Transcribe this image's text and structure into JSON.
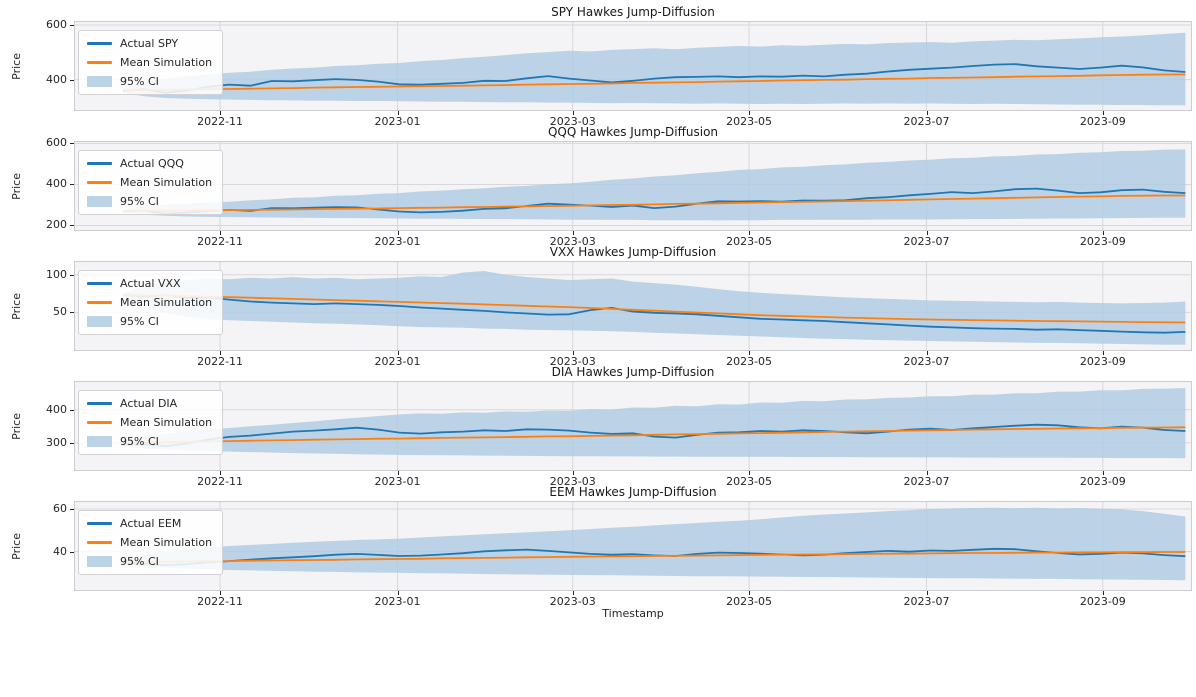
{
  "figure": {
    "xlabel": "Timestamp",
    "x_ticks": [
      "2022-11",
      "2023-01",
      "2023-03",
      "2023-05",
      "2023-07",
      "2023-09"
    ],
    "x_tick_positions": [
      0.13,
      0.289,
      0.446,
      0.604,
      0.763,
      0.921
    ],
    "data_x_range": [
      0.043,
      0.995
    ],
    "legend_mean": "Mean Simulation",
    "legend_ci": "95% CI",
    "colors": {
      "actual_line": "#1f77b4",
      "mean_line": "#ff7f0e",
      "ci_band": "#aecbe3",
      "plot_background": "#f4f4f6",
      "grid": "#d8d8dc",
      "spine": "#cccdd2",
      "text": "#262626"
    }
  },
  "chart_data": [
    {
      "type": "line",
      "ticker": "SPY",
      "title": "SPY Hawkes Jump-Diffusion",
      "ylabel": "Price",
      "legend_actual": "Actual SPY",
      "legend": [
        "Actual SPY",
        "Mean Simulation",
        "95% CI"
      ],
      "y_ticks": [
        400,
        600
      ],
      "ylim": [
        289,
        611
      ],
      "series": {
        "actual": [
          358,
          365,
          352,
          360,
          374,
          382,
          378,
          395,
          394,
          398,
          402,
          399,
          393,
          383,
          382,
          385,
          388,
          396,
          395,
          405,
          413,
          404,
          397,
          390,
          396,
          404,
          409,
          410,
          412,
          409,
          412,
          411,
          415,
          412,
          418,
          422,
          430,
          436,
          440,
          444,
          450,
          455,
          457,
          449,
          444,
          439,
          444,
          451,
          445,
          434,
          428
        ],
        "mean": [
          361,
          362,
          363,
          364,
          365,
          366,
          367,
          368,
          369,
          371,
          372,
          373,
          374,
          375,
          376,
          377,
          378,
          379,
          380,
          382,
          383,
          384,
          385,
          386,
          388,
          389,
          390,
          391,
          393,
          394,
          395,
          397,
          398,
          399,
          400,
          402,
          403,
          404,
          406,
          407,
          408,
          409,
          411,
          412,
          413,
          414,
          416,
          417,
          418,
          419,
          419
        ],
        "upper_95ci": [
          368,
          392,
          404,
          413,
          419,
          425,
          429,
          436,
          441,
          444,
          450,
          453,
          458,
          461,
          468,
          472,
          479,
          484,
          490,
          497,
          501,
          506,
          503,
          509,
          512,
          515,
          511,
          517,
          520,
          523,
          521,
          526,
          524,
          528,
          531,
          529,
          534,
          536,
          538,
          535,
          540,
          543,
          546,
          544,
          548,
          551,
          555,
          558,
          562,
          567,
          572
        ],
        "lower_95ci": [
          352,
          339,
          333,
          330,
          328,
          327,
          326,
          325,
          324,
          323,
          323,
          322,
          322,
          321,
          320,
          319,
          319,
          318,
          317,
          317,
          316,
          316,
          315,
          314,
          315,
          314,
          313,
          312,
          313,
          312,
          311,
          312,
          311,
          312,
          313,
          312,
          313,
          312,
          313,
          312,
          311,
          312,
          311,
          310,
          309,
          308,
          308,
          307,
          307,
          306,
          306
        ]
      }
    },
    {
      "type": "line",
      "ticker": "QQQ",
      "title": "QQQ Hawkes Jump-Diffusion",
      "ylabel": "Price",
      "legend_actual": "Actual QQQ",
      "legend": [
        "Actual QQQ",
        "Mean Simulation",
        "95% CI"
      ],
      "y_ticks": [
        200,
        400,
        600
      ],
      "ylim": [
        178,
        607
      ],
      "series": {
        "actual": [
          268,
          272,
          258,
          263,
          270,
          276,
          271,
          285,
          284,
          287,
          289,
          288,
          278,
          268,
          264,
          266,
          272,
          281,
          284,
          295,
          306,
          302,
          297,
          290,
          297,
          285,
          292,
          306,
          318,
          317,
          319,
          316,
          322,
          321,
          323,
          333,
          338,
          347,
          354,
          363,
          358,
          366,
          377,
          380,
          370,
          358,
          362,
          372,
          375,
          364,
          358
        ],
        "mean": [
          270,
          271,
          272,
          273,
          274,
          275,
          276,
          277,
          278,
          280,
          281,
          282,
          283,
          285,
          286,
          287,
          289,
          290,
          292,
          293,
          295,
          296,
          298,
          300,
          301,
          303,
          305,
          306,
          308,
          310,
          312,
          314,
          315,
          317,
          319,
          321,
          323,
          325,
          327,
          329,
          331,
          333,
          335,
          337,
          339,
          341,
          342,
          344,
          345,
          346,
          346
        ],
        "upper_95ci": [
          276,
          293,
          302,
          306,
          312,
          316,
          323,
          327,
          335,
          337,
          345,
          347,
          355,
          358,
          366,
          370,
          377,
          382,
          389,
          393,
          401,
          405,
          413,
          423,
          429,
          439,
          445,
          455,
          461,
          471,
          475,
          483,
          486,
          494,
          498,
          506,
          510,
          517,
          521,
          528,
          530,
          537,
          539,
          546,
          548,
          555,
          557,
          563,
          564,
          570,
          571
        ],
        "lower_95ci": [
          264,
          252,
          247,
          244,
          242,
          241,
          240,
          239,
          238,
          237,
          236,
          236,
          235,
          234,
          233,
          233,
          232,
          231,
          231,
          230,
          229,
          228,
          228,
          227,
          227,
          226,
          226,
          226,
          225,
          226,
          226,
          227,
          227,
          228,
          228,
          228,
          229,
          229,
          229,
          230,
          231,
          231,
          232,
          233,
          234,
          234,
          235,
          236,
          237,
          238,
          238
        ]
      }
    },
    {
      "type": "line",
      "ticker": "VXX",
      "title": "VXX Hawkes Jump-Diffusion",
      "ylabel": "Price",
      "legend_actual": "Actual VXX",
      "legend": [
        "Actual VXX",
        "Mean Simulation",
        "95% CI"
      ],
      "y_ticks": [
        50,
        100
      ],
      "ylim": [
        0,
        117
      ],
      "series": {
        "actual": [
          73,
          71,
          72.5,
          69.5,
          70,
          67,
          64.5,
          63,
          62,
          61,
          62,
          61,
          60,
          58.5,
          56.5,
          55,
          53.5,
          52,
          50,
          48.5,
          47,
          47.5,
          53,
          56,
          51,
          49.5,
          48.5,
          47.5,
          45.5,
          43.5,
          41.5,
          40.5,
          39.5,
          38.5,
          37,
          35.5,
          34,
          32.5,
          31,
          30,
          29,
          28.5,
          28,
          27,
          27.5,
          26.5,
          25.5,
          24.5,
          23.5,
          23,
          24
        ],
        "mean": [
          73,
          72.5,
          72,
          71.5,
          71,
          70.3,
          69.5,
          68.7,
          67.9,
          67.1,
          66.3,
          65.5,
          64.8,
          64,
          63.2,
          62.3,
          61.5,
          60.6,
          59.7,
          58.8,
          57.9,
          57,
          55.8,
          54.6,
          53.4,
          52.2,
          51,
          49.8,
          48.6,
          47.4,
          46.3,
          45.5,
          44.7,
          43.9,
          43.1,
          42.4,
          41.7,
          41.1,
          40.6,
          40.1,
          39.7,
          39.3,
          38.9,
          38.6,
          38.3,
          38,
          37.7,
          37.4,
          37.1,
          36.8,
          36.5
        ],
        "upper_95ci": [
          75,
          85,
          90,
          93,
          95,
          94,
          96,
          95,
          97,
          95,
          96,
          94,
          95,
          96,
          98,
          97,
          103,
          105,
          100,
          97,
          95,
          93,
          94,
          95,
          91,
          89,
          87,
          84,
          81,
          78,
          76,
          74.5,
          73,
          71.5,
          70,
          69,
          68,
          67,
          66,
          65.5,
          65,
          64.5,
          64,
          63.5,
          64,
          63,
          62.5,
          62,
          62.5,
          63,
          64.5
        ],
        "lower_95ci": [
          71,
          57,
          49,
          44,
          41,
          39.5,
          38.5,
          37.5,
          36.5,
          35.5,
          35,
          34,
          33,
          31.5,
          30.5,
          30,
          29.5,
          28.5,
          28,
          27,
          26.5,
          26,
          25.5,
          25,
          24,
          23,
          22,
          21,
          20,
          19,
          18,
          17,
          16,
          15,
          14.5,
          13.5,
          13,
          12.5,
          12,
          11.5,
          11,
          10.5,
          10,
          9.5,
          9.5,
          9,
          8.5,
          8,
          7.5,
          7,
          7
        ]
      }
    },
    {
      "type": "line",
      "ticker": "DIA",
      "title": "DIA Hawkes Jump-Diffusion",
      "ylabel": "Price",
      "legend_actual": "Actual DIA",
      "legend": [
        "Actual DIA",
        "Mean Simulation",
        "95% CI"
      ],
      "y_ticks": [
        300,
        400
      ],
      "ylim": [
        218,
        484
      ],
      "series": {
        "actual": [
          293,
          296,
          290,
          298,
          310,
          318,
          322,
          328,
          334,
          337,
          341,
          346,
          340,
          331,
          328,
          332,
          334,
          338,
          336,
          341,
          340,
          337,
          331,
          327,
          329,
          319,
          316,
          324,
          331,
          332,
          336,
          334,
          338,
          336,
          332,
          329,
          334,
          340,
          343,
          339,
          344,
          348,
          352,
          355,
          353,
          347,
          344,
          349,
          346,
          339,
          336
        ],
        "mean": [
          298,
          300,
          301.5,
          303,
          304.5,
          305.5,
          306.5,
          307.5,
          308.5,
          309.5,
          310.5,
          311.5,
          312.5,
          313,
          314,
          315,
          316,
          316.5,
          317.5,
          318.5,
          319.5,
          320,
          321,
          322,
          323,
          324.5,
          325.5,
          326.5,
          327.5,
          328.5,
          329.5,
          330.5,
          331.5,
          333,
          334,
          335,
          336,
          337,
          338,
          339,
          340,
          341,
          342,
          342.5,
          343.5,
          344,
          344.5,
          345.5,
          346,
          346.5,
          347
        ],
        "upper_95ci": [
          302,
          318,
          327,
          334,
          340,
          345,
          350,
          355,
          360,
          365,
          371,
          376,
          381,
          386,
          389,
          388,
          392,
          391,
          395,
          394,
          398,
          397,
          402,
          401,
          407,
          406,
          412,
          411,
          417,
          416,
          422,
          421,
          427,
          426,
          431,
          432,
          436,
          437,
          441,
          441,
          446,
          446,
          450,
          450,
          455,
          455,
          459,
          459,
          463,
          464,
          466
        ],
        "lower_95ci": [
          295,
          284,
          280,
          277,
          275,
          273.5,
          272,
          270.5,
          269,
          268,
          267,
          265.5,
          264.5,
          263.5,
          263,
          262.5,
          262,
          261.5,
          261,
          260.5,
          260,
          259.5,
          259.5,
          259,
          259,
          258.5,
          258.5,
          258,
          258,
          258,
          257.5,
          257.5,
          257,
          257,
          257,
          256.5,
          256.5,
          256,
          256,
          256,
          255.5,
          255.5,
          255,
          255,
          255,
          254.5,
          254.5,
          254,
          254,
          254,
          253.5
        ]
      }
    },
    {
      "type": "line",
      "ticker": "EEM",
      "title": "EEM Hawkes Jump-Diffusion",
      "ylabel": "Price",
      "legend_actual": "Actual EEM",
      "legend": [
        "Actual EEM",
        "Mean Simulation",
        "95% CI"
      ],
      "y_ticks": [
        40,
        60
      ],
      "ylim": [
        21.9,
        63.3
      ],
      "series": {
        "actual": [
          34.8,
          34.2,
          33.6,
          34,
          34.9,
          35.5,
          36.2,
          36.8,
          37.3,
          37.8,
          38.5,
          38.9,
          38.4,
          37.9,
          38.1,
          38.6,
          39.2,
          40.1,
          40.6,
          40.9,
          40.3,
          39.6,
          38.9,
          38.5,
          38.8,
          38.2,
          37.9,
          38.9,
          39.5,
          39.3,
          39,
          38.6,
          38.2,
          38.5,
          39.2,
          39.8,
          40.3,
          39.9,
          40.5,
          40.3,
          40.8,
          41.3,
          41.1,
          40.1,
          39.3,
          38.6,
          38.9,
          39.5,
          39.1,
          38.3,
          37.8
        ],
        "mean": [
          35,
          35.1,
          35.2,
          35.3,
          35.4,
          35.5,
          35.7,
          35.8,
          35.9,
          36,
          36.1,
          36.3,
          36.4,
          36.5,
          36.6,
          36.8,
          36.9,
          37,
          37.1,
          37.3,
          37.4,
          37.5,
          37.6,
          37.7,
          37.8,
          37.9,
          38,
          38.1,
          38.2,
          38.3,
          38.4,
          38.5,
          38.6,
          38.7,
          38.8,
          38.9,
          39,
          39,
          39.1,
          39.2,
          39.3,
          39.3,
          39.4,
          39.5,
          39.5,
          39.6,
          39.6,
          39.7,
          39.7,
          39.8,
          39.8
        ],
        "upper_95ci": [
          35.8,
          38.5,
          40,
          41.2,
          42,
          42.6,
          43.1,
          43.6,
          44.1,
          44.6,
          45,
          45.4,
          45.7,
          46.1,
          46.6,
          47.1,
          47.6,
          48.1,
          48.6,
          49,
          49.5,
          50,
          50.6,
          51.2,
          51.7,
          52.3,
          52.9,
          53.4,
          54,
          54.5,
          55.2,
          56,
          56.8,
          57.4,
          57.9,
          58.4,
          59,
          59.5,
          60,
          60.3,
          60.5,
          60.6,
          60.4,
          60.6,
          60.3,
          60.5,
          60.2,
          59.8,
          59,
          57.8,
          56.5
        ],
        "lower_95ci": [
          34.2,
          33,
          32.4,
          31.9,
          31.6,
          31.3,
          31.1,
          30.9,
          30.7,
          30.5,
          30.4,
          30.2,
          30.1,
          30,
          29.8,
          29.7,
          29.6,
          29.4,
          29.3,
          29.2,
          29.1,
          29,
          28.9,
          28.8,
          28.7,
          28.6,
          28.5,
          28.4,
          28.4,
          28.3,
          28.2,
          28.1,
          28,
          28,
          27.9,
          27.8,
          27.7,
          27.6,
          27.5,
          27.4,
          27.4,
          27.3,
          27.2,
          27.1,
          27.1,
          27,
          26.9,
          26.8,
          26.7,
          26.6,
          26.5
        ]
      }
    }
  ]
}
